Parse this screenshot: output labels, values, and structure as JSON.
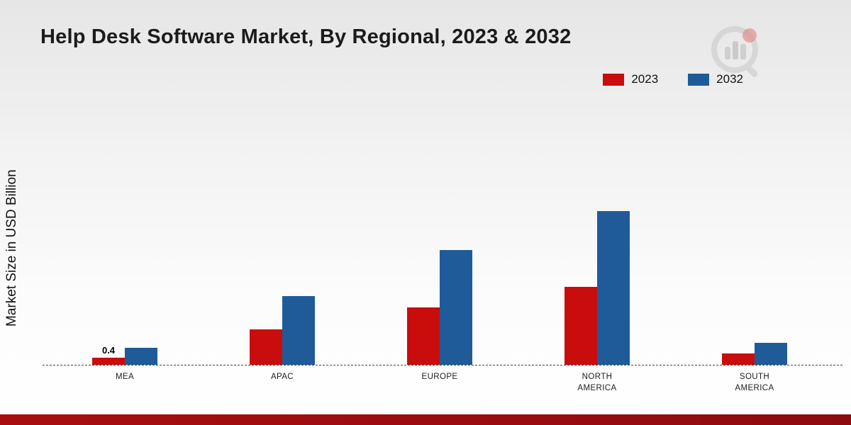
{
  "chart_data": {
    "type": "bar",
    "title": "Help Desk Software Market, By Regional, 2023 & 2032",
    "ylabel": "Market Size in USD Billion",
    "xlabel": "",
    "categories": [
      "MEA",
      "APAC",
      "EUROPE",
      "NORTH AMERICA",
      "SOUTH AMERICA"
    ],
    "series": [
      {
        "name": "2023",
        "color": "#c90d0d",
        "values": [
          0.4,
          1.9,
          3.1,
          4.2,
          0.6
        ],
        "value_labels": [
          "0.4",
          "",
          "",
          "",
          ""
        ]
      },
      {
        "name": "2032",
        "color": "#1f5b99",
        "values": [
          0.9,
          3.7,
          6.2,
          8.3,
          1.2
        ],
        "value_labels": [
          "",
          "",
          "",
          "",
          ""
        ]
      }
    ],
    "ylim": [
      0,
      9
    ],
    "grid": false,
    "legend_position": "top-right",
    "baseline_style": "dashed"
  },
  "theme": {
    "footer_bar": "#a80e10",
    "background_top": "#e6e6e6"
  },
  "logo": {
    "name": "brand-watermark-logo"
  }
}
